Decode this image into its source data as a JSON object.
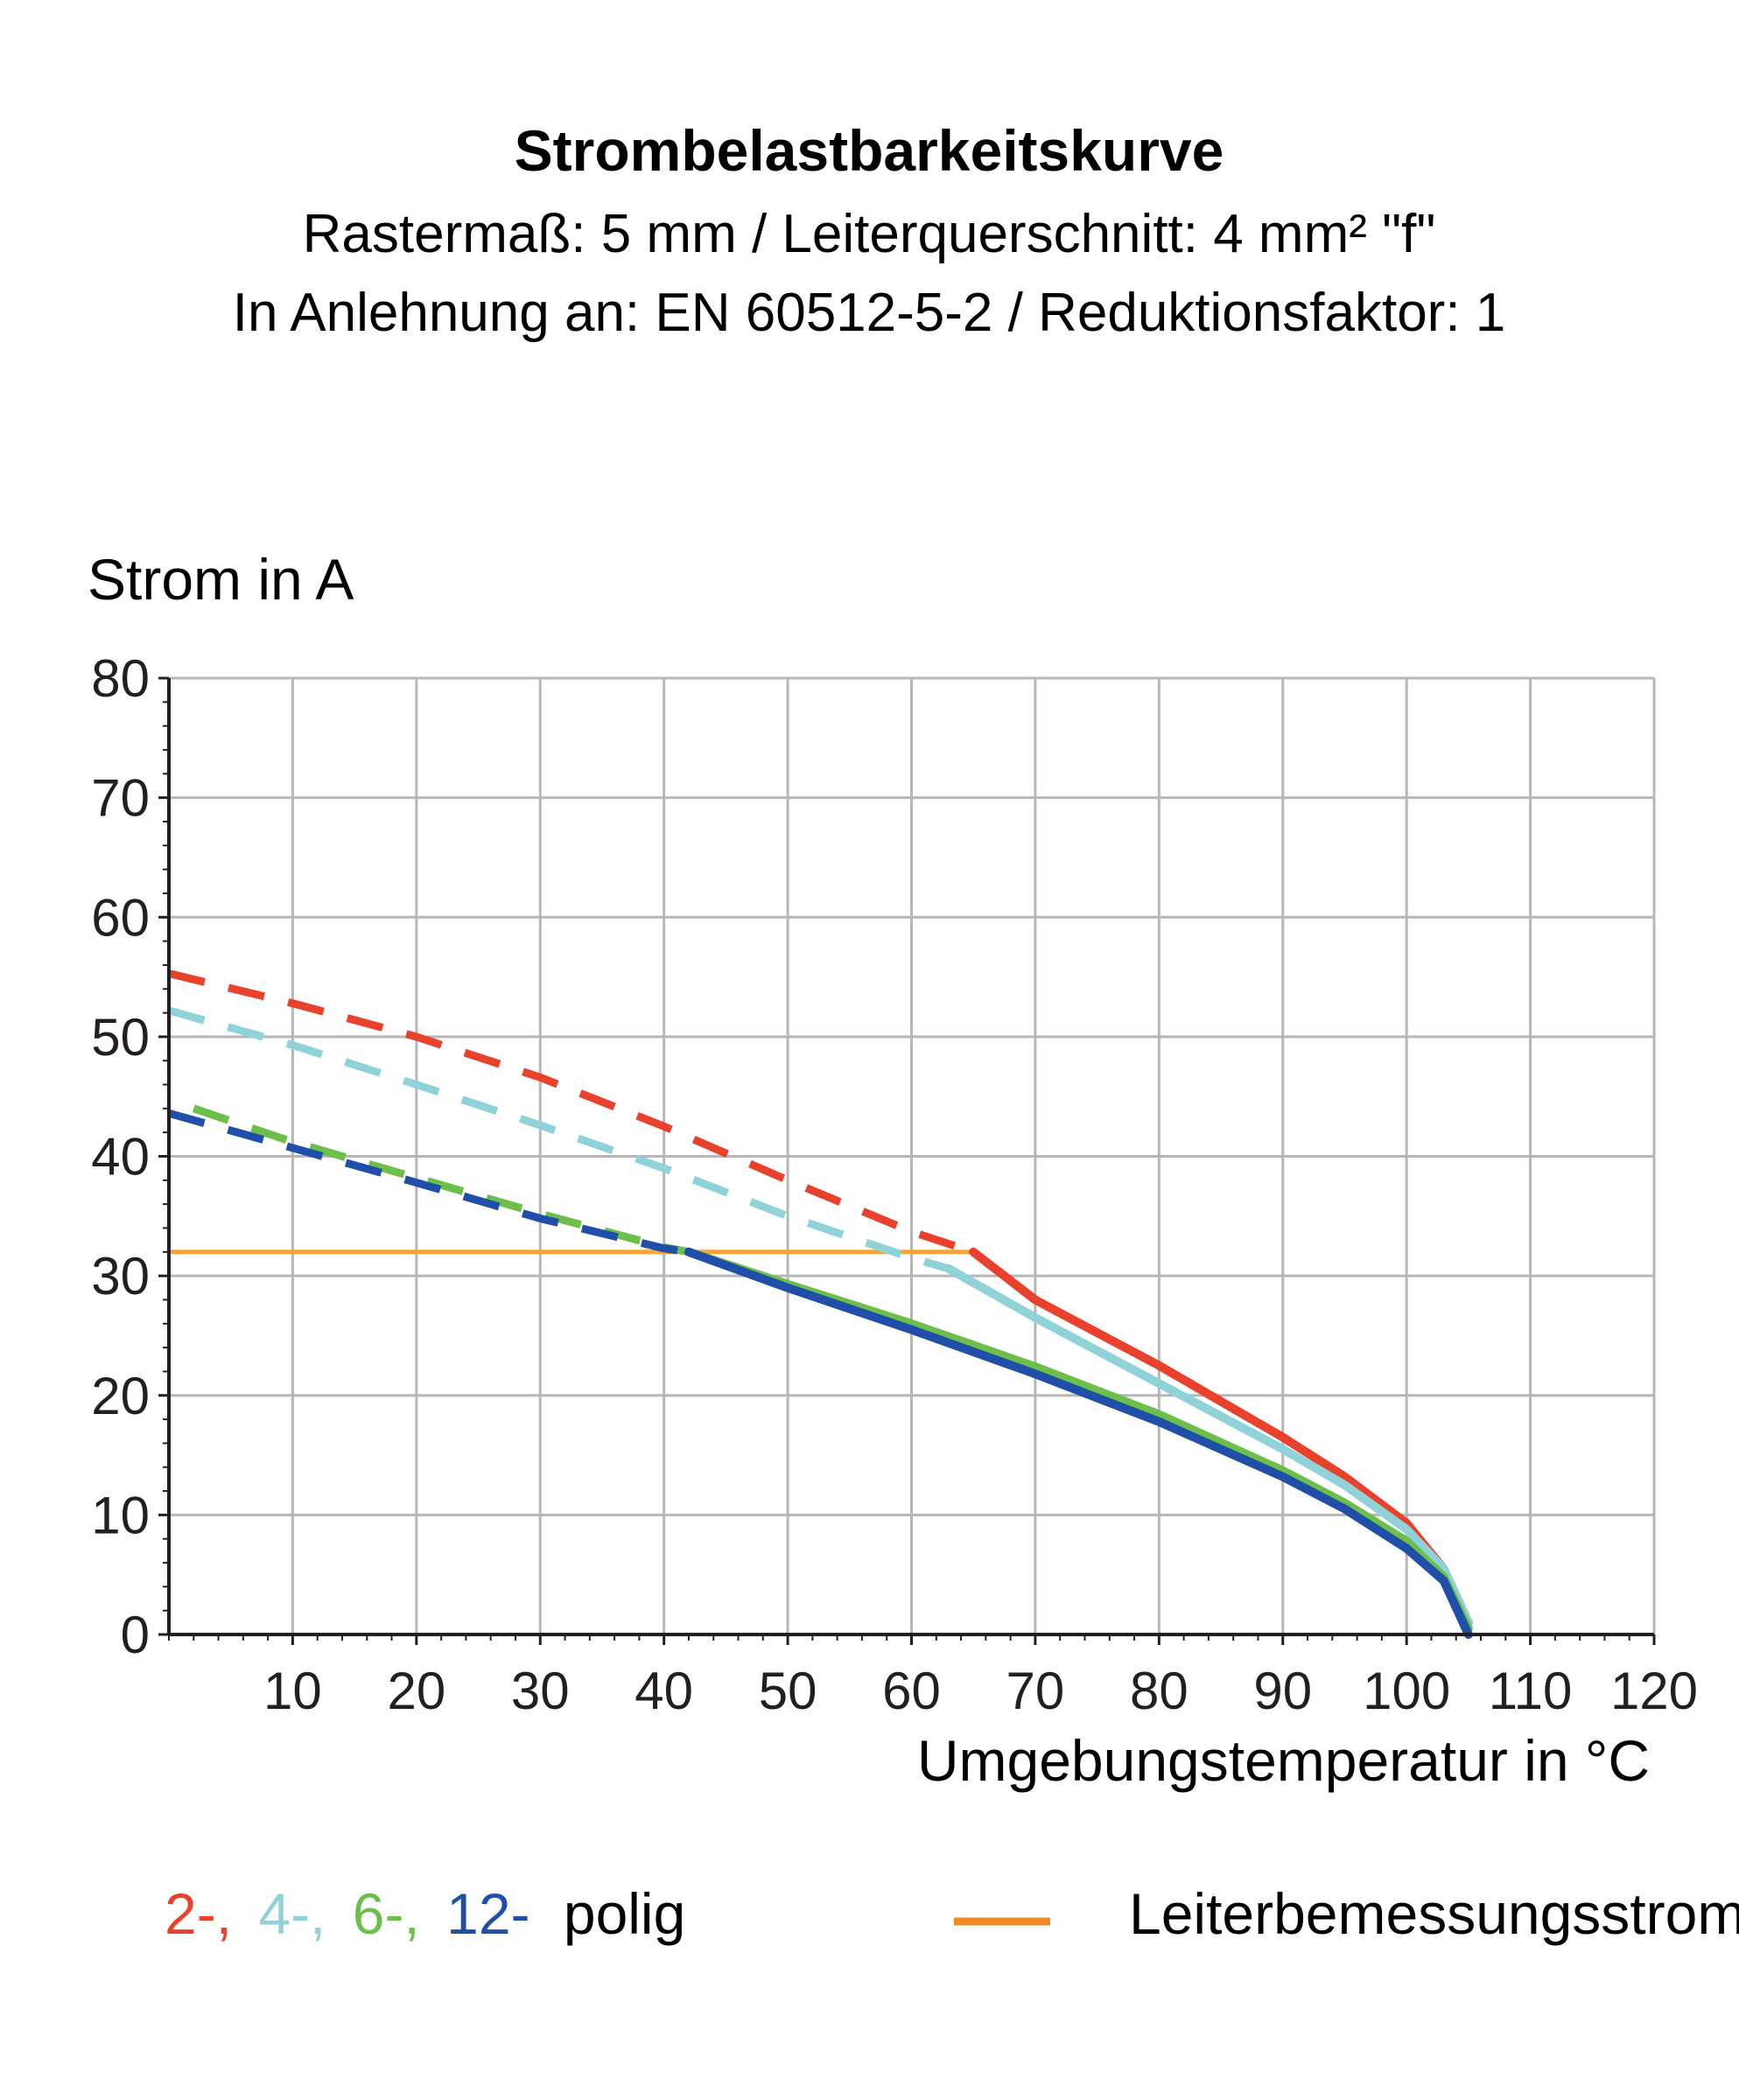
{
  "chart_data": {
    "type": "line",
    "title": "Strombelastbarkeitskurve",
    "subtitle": [
      "Rastermaß: 5 mm / Leiterquerschnitt: 4 mm² \"f\"",
      "In Anlehnung an: EN 60512-5-2 / Reduktionsfaktor: 1"
    ],
    "ylabel": "Strom in A",
    "xlabel": "Umgebungstemperatur in °C",
    "xlim": [
      0,
      120
    ],
    "ylim": [
      0,
      80
    ],
    "x_ticks": [
      "10",
      "20",
      "30",
      "40",
      "50",
      "60",
      "70",
      "80",
      "90",
      "100",
      "110",
      "120"
    ],
    "y_ticks": [
      "0",
      "10",
      "20",
      "30",
      "40",
      "50",
      "60",
      "70",
      "80"
    ],
    "grid": true,
    "series": [
      {
        "color": "#e8412c",
        "dashed": {
          "x": [
            0,
            10,
            20,
            30,
            40,
            50,
            60,
            65
          ],
          "y": [
            55.3,
            52.8,
            50,
            46.6,
            42.5,
            38,
            33.7,
            32
          ]
        },
        "solid": {
          "x": [
            65,
            70,
            80,
            90,
            95,
            100,
            103,
            105
          ],
          "y": [
            32,
            28,
            22.5,
            16.5,
            13.2,
            9.3,
            5.5,
            1
          ]
        }
      },
      {
        "color": "#8fd3d8",
        "dashed": {
          "x": [
            0,
            10,
            20,
            30,
            40,
            50,
            60,
            63
          ],
          "y": [
            52.2,
            49.3,
            46,
            42.6,
            39,
            35,
            31.5,
            30.6
          ]
        },
        "solid": {
          "x": [
            63,
            70,
            80,
            90,
            95,
            100,
            103,
            105
          ],
          "y": [
            30.6,
            26.5,
            21,
            15.5,
            12.5,
            8.8,
            5.5,
            1
          ]
        }
      },
      {
        "color": "#6cbf4a",
        "dashed": {
          "x": [
            2,
            10,
            20,
            30,
            40,
            42
          ],
          "y": [
            44,
            41.2,
            38.2,
            35.2,
            32.4,
            32
          ]
        },
        "solid": {
          "x": [
            42,
            50,
            60,
            70,
            80,
            90,
            95,
            100,
            103,
            105
          ],
          "y": [
            32,
            29.3,
            26,
            22.4,
            18.4,
            13.7,
            11,
            7.8,
            4.8,
            0.5
          ]
        }
      },
      {
        "color": "#1f4fa8",
        "dashed": {
          "x": [
            0,
            10,
            20,
            30,
            40,
            42
          ],
          "y": [
            43.6,
            40.7,
            37.8,
            34.8,
            32.3,
            32
          ]
        },
        "solid": {
          "x": [
            42,
            50,
            60,
            70,
            80,
            90,
            95,
            100,
            103,
            105
          ],
          "y": [
            32,
            29,
            25.5,
            21.8,
            17.8,
            13.2,
            10.5,
            7.2,
            4.5,
            0
          ]
        }
      }
    ],
    "reference_line": {
      "y": 32,
      "x": [
        0,
        65
      ],
      "color": "#f6a33a"
    },
    "legend": {
      "placement": "bottom",
      "series_labels": [
        {
          "text": "2-,",
          "color": "#e8412c"
        },
        {
          "text": "4-,",
          "color": "#8fd3d8"
        },
        {
          "text": "6-,",
          "color": "#6cbf4a"
        },
        {
          "text": "12-",
          "color": "#1f4fa8"
        }
      ],
      "series_suffix": "polig",
      "reference_label": "Leiterbemessungsstrom",
      "reference_color": "#f08a24"
    }
  }
}
